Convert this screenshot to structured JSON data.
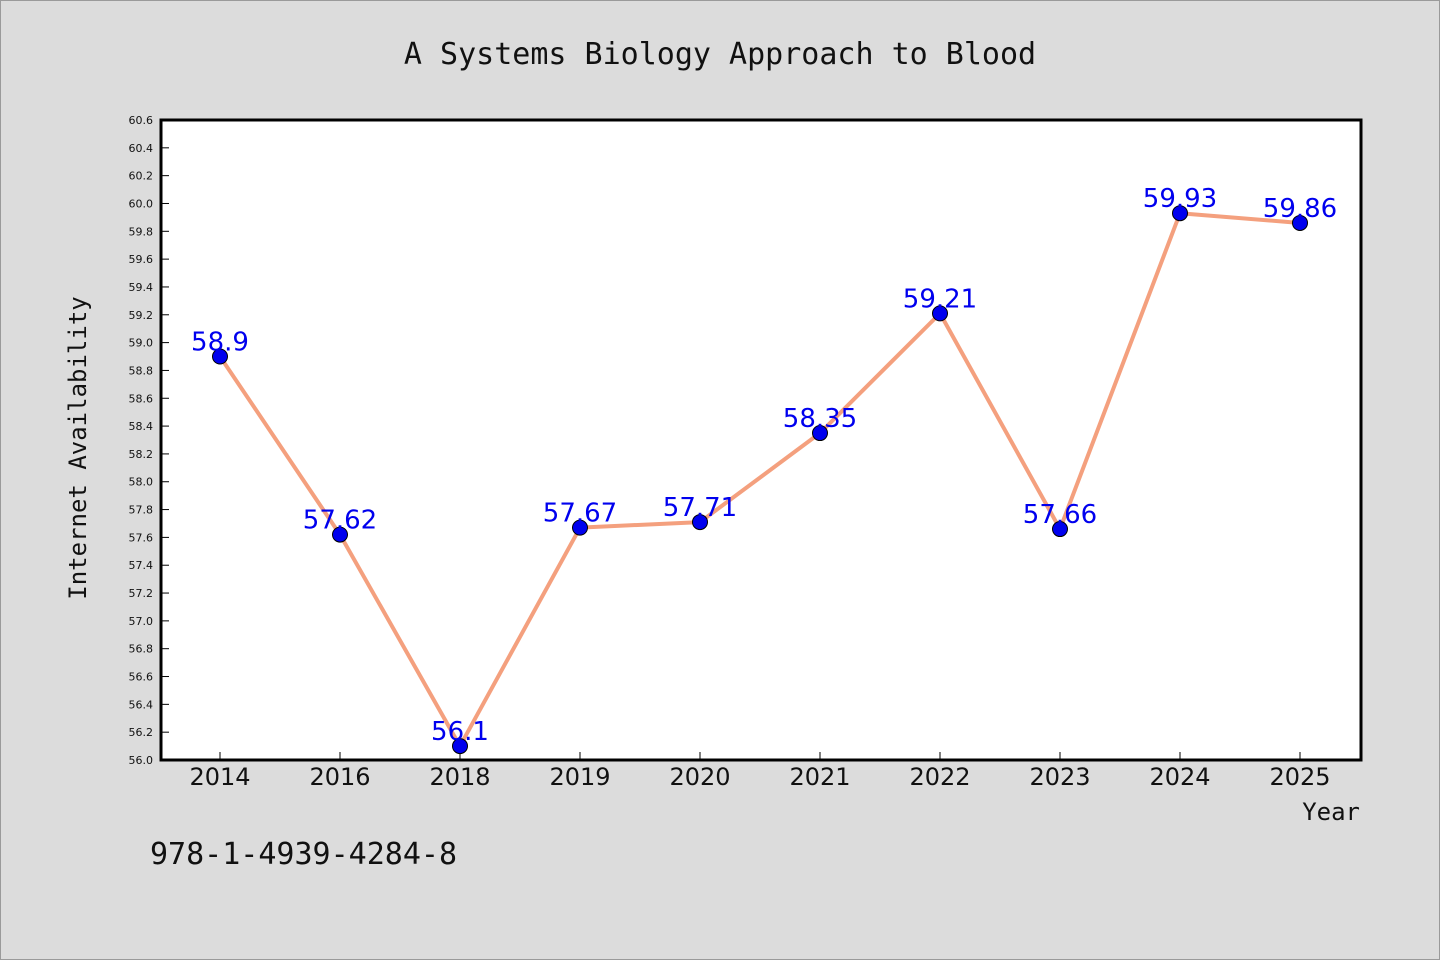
{
  "chart_data": {
    "type": "line",
    "title": "A Systems Biology Approach to Blood",
    "xlabel": "Year",
    "ylabel": "Internet Availability",
    "categories": [
      "2014",
      "2016",
      "2018",
      "2019",
      "2020",
      "2021",
      "2022",
      "2023",
      "2024",
      "2025"
    ],
    "series": [
      {
        "values": [
          58.9,
          57.62,
          56.1,
          57.67,
          57.71,
          58.35,
          59.21,
          57.66,
          59.93,
          59.86
        ]
      }
    ],
    "data_labels": [
      "58.9",
      "57.62",
      "56.1",
      "57.67",
      "57.71",
      "58.35",
      "59.21",
      "57.66",
      "59.93",
      "59.86"
    ],
    "ylim": [
      56.0,
      60.6
    ],
    "yticks": [
      "56.0",
      "56.2",
      "56.4",
      "56.6",
      "56.8",
      "57.0",
      "57.2",
      "57.4",
      "57.6",
      "57.8",
      "58.0",
      "58.2",
      "58.4",
      "58.6",
      "58.8",
      "59.0",
      "59.2",
      "59.4",
      "59.6",
      "59.8",
      "60.0",
      "60.2",
      "60.4",
      "60.6"
    ],
    "grid": false,
    "line_color": "#f4a07e",
    "marker_color": "#0000ee",
    "label_color": "#0000ee",
    "background": "#ffffff"
  },
  "footer_text": "978-1-4939-4284-8"
}
